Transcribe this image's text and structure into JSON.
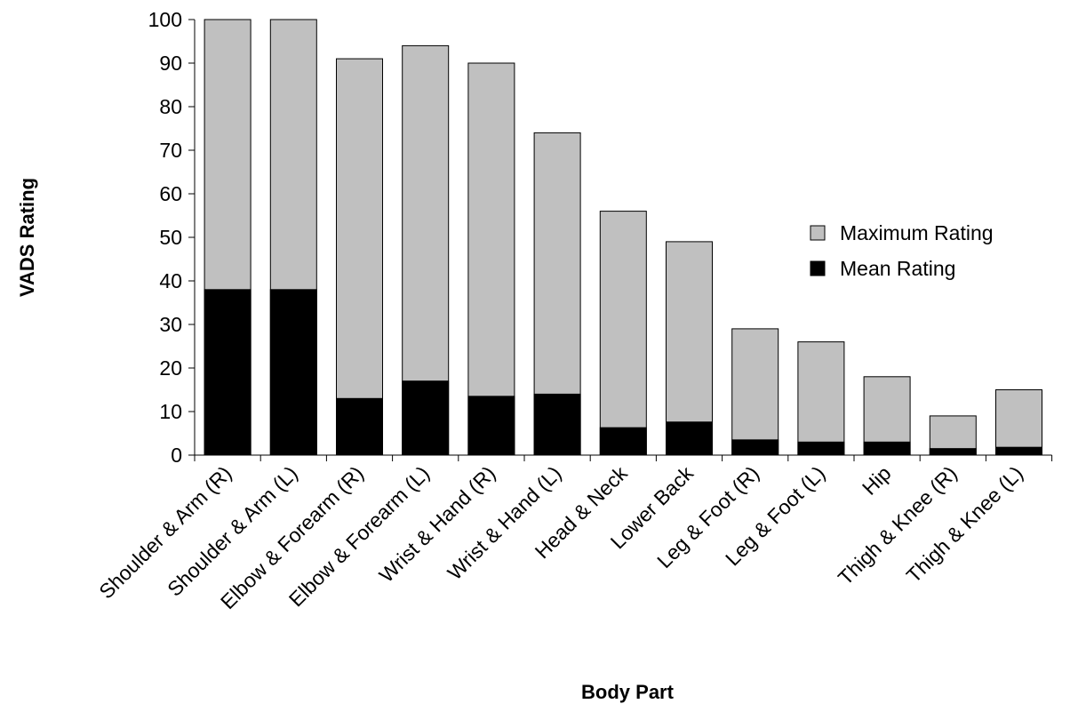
{
  "chart_data": {
    "type": "bar",
    "overlap": true,
    "xlabel": "Body Part",
    "ylabel": "VADS Rating",
    "categories": [
      "Shoulder & Arm (R)",
      "Shoulder & Arm (L)",
      "Elbow & Forearm (R)",
      "Elbow & Forearm (L)",
      "Wrist & Hand (R)",
      "Wrist & Hand (L)",
      "Head & Neck",
      "Lower Back",
      "Leg & Foot (R)",
      "Leg & Foot (L)",
      "Hip",
      "Thigh & Knee (R)",
      "Thigh & Knee (L)"
    ],
    "series": [
      {
        "name": "Maximum Rating",
        "color": "#c0c0c0",
        "values": [
          100,
          100,
          91,
          94,
          90,
          74,
          56,
          49,
          29,
          26,
          18,
          9,
          15
        ]
      },
      {
        "name": "Mean Rating",
        "color": "#000000",
        "values": [
          38,
          38,
          13,
          17,
          13.5,
          14,
          6.3,
          7.6,
          3.5,
          3,
          3,
          1.5,
          1.8
        ]
      }
    ],
    "ylim": [
      0,
      100
    ],
    "yticks": [
      0,
      10,
      20,
      30,
      40,
      50,
      60,
      70,
      80,
      90,
      100
    ],
    "grid": false,
    "legend": "right"
  }
}
